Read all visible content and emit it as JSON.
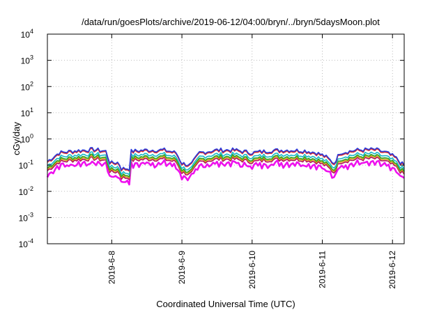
{
  "chart_data": {
    "type": "line",
    "title": "/data/run/goesPlots/archive/2019-06-12/04:00/bryn/../bryn/5daysMoon.plot",
    "xlabel": "Coordinated Universal Time (UTC)",
    "ylabel": "cGy/day",
    "y_scale": "log",
    "ylim": [
      0.0001,
      10000
    ],
    "y_ticks": [
      {
        "base": "10",
        "exp": "-4"
      },
      {
        "base": "10",
        "exp": "-3"
      },
      {
        "base": "10",
        "exp": "-2"
      },
      {
        "base": "10",
        "exp": "-1"
      },
      {
        "base": "10",
        "exp": "0"
      },
      {
        "base": "10",
        "exp": "1"
      },
      {
        "base": "10",
        "exp": "2"
      },
      {
        "base": "10",
        "exp": "3"
      },
      {
        "base": "10",
        "exp": "4"
      }
    ],
    "xlim": [
      "2019-06-07T02:00",
      "2019-06-12T04:00"
    ],
    "x_ticks": [
      "2019-6-8",
      "2019-6-9",
      "2019-6-10",
      "2019-6-11",
      "2019-6-12"
    ],
    "x_tick_dates": [
      "2019-06-08",
      "2019-06-09",
      "2019-06-10",
      "2019-06-11",
      "2019-06-12"
    ],
    "grid": true,
    "series_colors": [
      "#2b3bdb",
      "#d62728",
      "#17b8c8",
      "#28a428",
      "#d4a017",
      "#b0115a",
      "#ee11ee"
    ],
    "series_anchors": [
      {
        "x": "2019-06-07T02:00",
        "y": 0.14
      },
      {
        "x": "2019-06-07T06:00",
        "y": 0.3
      },
      {
        "x": "2019-06-07T12:00",
        "y": 0.36
      },
      {
        "x": "2019-06-07T18:00",
        "y": 0.4
      },
      {
        "x": "2019-06-07T22:00",
        "y": 0.34
      },
      {
        "x": "2019-06-07T23:30",
        "y": 0.12
      },
      {
        "x": "2019-06-08T02:30",
        "y": 0.13
      },
      {
        "x": "2019-06-08T03:00",
        "y": 0.075
      },
      {
        "x": "2019-06-08T06:00",
        "y": 0.075
      },
      {
        "x": "2019-06-08T06:30",
        "y": 0.34
      },
      {
        "x": "2019-06-08T12:00",
        "y": 0.38
      },
      {
        "x": "2019-06-08T18:00",
        "y": 0.38
      },
      {
        "x": "2019-06-08T22:00",
        "y": 0.3
      },
      {
        "x": "2019-06-09T00:00",
        "y": 0.12
      },
      {
        "x": "2019-06-09T03:00",
        "y": 0.1
      },
      {
        "x": "2019-06-09T06:00",
        "y": 0.3
      },
      {
        "x": "2019-06-09T12:00",
        "y": 0.38
      },
      {
        "x": "2019-06-09T18:00",
        "y": 0.38
      },
      {
        "x": "2019-06-10T00:00",
        "y": 0.3
      },
      {
        "x": "2019-06-10T06:00",
        "y": 0.36
      },
      {
        "x": "2019-06-10T12:00",
        "y": 0.38
      },
      {
        "x": "2019-06-10T18:00",
        "y": 0.36
      },
      {
        "x": "2019-06-10T22:00",
        "y": 0.3
      },
      {
        "x": "2019-06-11T01:00",
        "y": 0.22
      },
      {
        "x": "2019-06-11T04:00",
        "y": 0.12
      },
      {
        "x": "2019-06-11T06:00",
        "y": 0.3
      },
      {
        "x": "2019-06-11T12:00",
        "y": 0.38
      },
      {
        "x": "2019-06-11T18:00",
        "y": 0.4
      },
      {
        "x": "2019-06-11T22:00",
        "y": 0.3
      },
      {
        "x": "2019-06-12T01:00",
        "y": 0.2
      },
      {
        "x": "2019-06-12T03:00",
        "y": 0.12
      },
      {
        "x": "2019-06-12T04:00",
        "y": 0.1
      }
    ],
    "series_ratios": [
      1.0,
      0.92,
      0.68,
      0.56,
      0.5,
      0.44,
      0.33
    ]
  }
}
